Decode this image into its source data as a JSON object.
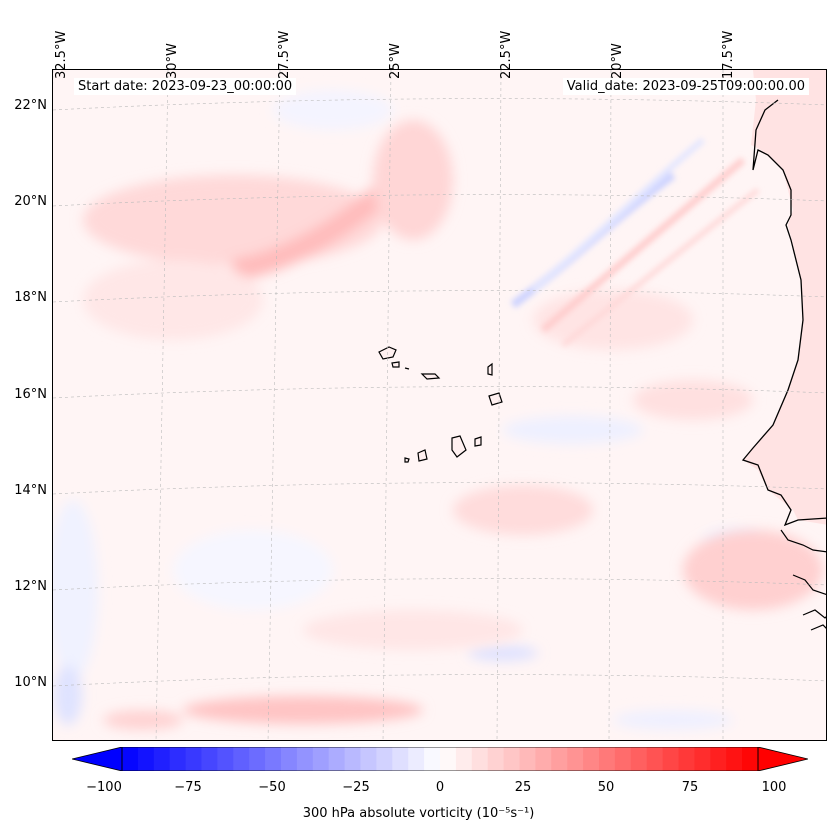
{
  "header": {
    "start_date": "Start date: 2023-09-23_00:00:00",
    "valid_date": "Valid_date: 2023-09-25T09:00:00.00"
  },
  "map": {
    "lat_labels": [
      "22°N",
      "20°N",
      "18°N",
      "16°N",
      "14°N",
      "12°N",
      "10°N"
    ],
    "lon_labels": [
      "32.5°W",
      "30°W",
      "27.5°W",
      "25°W",
      "22.5°W",
      "20°W",
      "17.5°W"
    ],
    "land_color": "#ffdede",
    "coast_color": "#000000"
  },
  "colorbar": {
    "ticks": [
      "−100",
      "−75",
      "−50",
      "−25",
      "0",
      "25",
      "50",
      "75",
      "100"
    ],
    "label": "300 hPa absolute vorticity (10⁻⁵s⁻¹)",
    "negative_color": "#0000ff",
    "positive_color": "#ff0000"
  }
}
